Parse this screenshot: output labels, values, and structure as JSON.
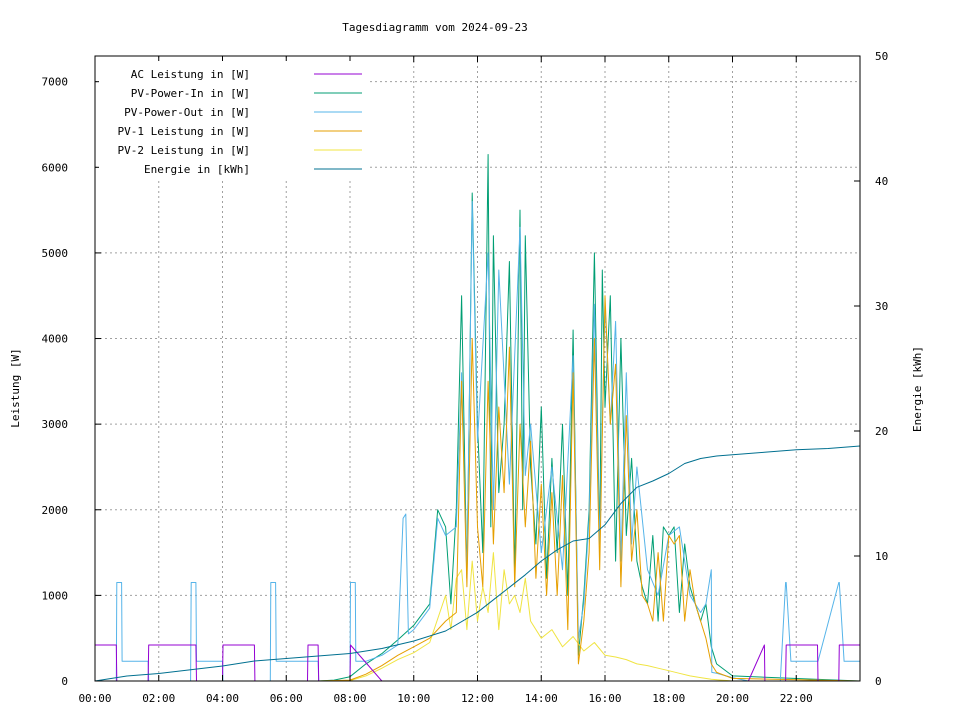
{
  "chart_data": {
    "type": "line",
    "title": "Tagesdiagramm vom 2024-09-23",
    "xlabel": "",
    "ylabel": "Leistung [W]",
    "y2label": "Energie [kWh]",
    "xlim": [
      "00:00",
      "24:00"
    ],
    "ylim": [
      0,
      7300
    ],
    "y2lim": [
      0,
      50
    ],
    "x_ticks": [
      "00:00",
      "02:00",
      "04:00",
      "06:00",
      "08:00",
      "10:00",
      "12:00",
      "14:00",
      "16:00",
      "18:00",
      "20:00",
      "22:00"
    ],
    "y_ticks": [
      0,
      1000,
      2000,
      3000,
      4000,
      5000,
      6000,
      7000
    ],
    "y2_ticks": [
      0,
      10,
      20,
      30,
      40,
      50
    ],
    "grid": true,
    "legend_position": "top-left",
    "series": [
      {
        "name": "AC Leistung in [W]",
        "axis": "left",
        "color": "#9400d3",
        "x": [
          "00:00",
          "00:40",
          "00:41",
          "01:40",
          "01:41",
          "03:10",
          "03:11",
          "04:00",
          "04:01",
          "05:00",
          "05:01",
          "06:40",
          "06:41",
          "07:00",
          "07:01",
          "08:00",
          "08:01",
          "09:00",
          "10:00",
          "11:00",
          "11:30",
          "12:00",
          "12:30",
          "13:00",
          "13:30",
          "14:00",
          "14:30",
          "15:00",
          "15:30",
          "16:00",
          "16:30",
          "17:00",
          "17:30",
          "18:00",
          "18:30",
          "19:00",
          "19:30",
          "20:00",
          "20:30",
          "21:00",
          "21:01",
          "21:40",
          "21:41",
          "22:40",
          "22:41",
          "23:20",
          "23:21",
          "24:00"
        ],
        "values": [
          420,
          420,
          0,
          0,
          420,
          420,
          0,
          0,
          420,
          420,
          0,
          0,
          420,
          420,
          0,
          0,
          420,
          0,
          0,
          0,
          0,
          0,
          0,
          0,
          0,
          0,
          0,
          0,
          0,
          0,
          0,
          0,
          0,
          0,
          0,
          0,
          0,
          0,
          0,
          420,
          0,
          0,
          420,
          420,
          0,
          0,
          420,
          420
        ]
      },
      {
        "name": "PV-Power-In in [W]",
        "axis": "left",
        "color": "#009e73",
        "x": [
          "00:00",
          "07:00",
          "07:30",
          "08:00",
          "08:30",
          "09:00",
          "09:30",
          "10:00",
          "10:30",
          "10:45",
          "11:00",
          "11:10",
          "11:20",
          "11:30",
          "11:40",
          "11:50",
          "12:00",
          "12:10",
          "12:20",
          "12:25",
          "12:30",
          "12:40",
          "12:50",
          "13:00",
          "13:10",
          "13:20",
          "13:25",
          "13:30",
          "13:40",
          "13:50",
          "14:00",
          "14:10",
          "14:20",
          "14:30",
          "14:40",
          "14:50",
          "15:00",
          "15:10",
          "15:20",
          "15:30",
          "15:40",
          "15:50",
          "15:55",
          "16:00",
          "16:10",
          "16:20",
          "16:30",
          "16:40",
          "16:50",
          "17:00",
          "17:10",
          "17:20",
          "17:30",
          "17:40",
          "17:50",
          "18:00",
          "18:10",
          "18:20",
          "18:30",
          "18:40",
          "18:50",
          "19:00",
          "19:10",
          "19:20",
          "19:30",
          "20:00",
          "24:00"
        ],
        "values": [
          0,
          0,
          10,
          50,
          200,
          320,
          480,
          650,
          900,
          2000,
          1800,
          900,
          2000,
          4500,
          1200,
          5700,
          3000,
          1500,
          6150,
          1800,
          5200,
          2200,
          3000,
          4900,
          1200,
          5500,
          2000,
          5200,
          2500,
          1600,
          3200,
          1200,
          2600,
          1500,
          3000,
          1000,
          4100,
          300,
          1000,
          2000,
          5000,
          1600,
          4800,
          3200,
          4500,
          1400,
          4000,
          1700,
          2600,
          1400,
          1100,
          900,
          1700,
          700,
          1800,
          1700,
          1800,
          800,
          1600,
          1100,
          900,
          700,
          900,
          400,
          200,
          60,
          0
        ]
      },
      {
        "name": "PV-Power-Out in [W]",
        "axis": "left",
        "color": "#56b4e9",
        "x": [
          "00:00",
          "00:40",
          "00:41",
          "00:50",
          "00:51",
          "01:40",
          "01:41",
          "03:00",
          "03:01",
          "03:10",
          "03:11",
          "04:00",
          "04:01",
          "05:30",
          "05:31",
          "05:40",
          "05:41",
          "07:00",
          "07:01",
          "08:00",
          "08:01",
          "08:10",
          "08:11",
          "08:30",
          "09:00",
          "09:30",
          "09:40",
          "09:45",
          "09:50",
          "10:00",
          "10:30",
          "10:45",
          "11:00",
          "11:20",
          "11:30",
          "11:40",
          "11:50",
          "12:00",
          "12:20",
          "12:30",
          "12:40",
          "13:00",
          "13:20",
          "13:30",
          "13:40",
          "14:00",
          "14:20",
          "14:40",
          "15:00",
          "15:10",
          "15:20",
          "15:30",
          "15:40",
          "15:50",
          "16:00",
          "16:10",
          "16:20",
          "16:30",
          "16:40",
          "16:50",
          "17:00",
          "17:20",
          "17:40",
          "18:00",
          "18:20",
          "18:40",
          "19:00",
          "19:10",
          "19:20",
          "19:21",
          "19:30",
          "20:00",
          "20:30",
          "21:30",
          "21:40",
          "21:41",
          "21:50",
          "21:51",
          "22:40",
          "22:41",
          "23:20",
          "23:21",
          "23:30",
          "23:31",
          "24:00"
        ],
        "values": [
          0,
          0,
          1150,
          1150,
          230,
          230,
          0,
          0,
          1150,
          1150,
          230,
          230,
          0,
          0,
          1150,
          1150,
          230,
          230,
          0,
          0,
          1150,
          1150,
          230,
          230,
          300,
          420,
          1900,
          1950,
          550,
          600,
          850,
          1900,
          1700,
          1800,
          3600,
          1200,
          5600,
          2800,
          5000,
          2000,
          4800,
          2300,
          5300,
          2400,
          3000,
          1500,
          2500,
          1300,
          3800,
          500,
          900,
          1900,
          4400,
          1600,
          4400,
          3000,
          4200,
          1400,
          3600,
          1600,
          2500,
          1300,
          1000,
          1700,
          1800,
          1000,
          800,
          900,
          1300,
          100,
          90,
          40,
          0,
          0,
          1150,
          1150,
          230,
          230,
          230,
          230,
          1150,
          1150,
          230,
          230,
          230
        ]
      },
      {
        "name": "PV-1 Leistung in [W]",
        "axis": "left",
        "color": "#e69f00",
        "x": [
          "00:00",
          "07:00",
          "08:00",
          "08:30",
          "09:00",
          "09:30",
          "10:00",
          "10:30",
          "11:00",
          "11:20",
          "11:30",
          "11:40",
          "11:50",
          "12:00",
          "12:10",
          "12:20",
          "12:30",
          "12:40",
          "12:50",
          "13:00",
          "13:10",
          "13:20",
          "13:30",
          "13:40",
          "13:50",
          "14:00",
          "14:10",
          "14:20",
          "14:30",
          "14:40",
          "14:50",
          "15:00",
          "15:10",
          "15:20",
          "15:30",
          "15:40",
          "15:50",
          "16:00",
          "16:10",
          "16:20",
          "16:30",
          "16:40",
          "16:50",
          "17:00",
          "17:10",
          "17:20",
          "17:30",
          "17:40",
          "17:50",
          "18:00",
          "18:10",
          "18:20",
          "18:30",
          "18:40",
          "18:50",
          "19:00",
          "19:10",
          "19:20",
          "19:30",
          "20:00",
          "24:00"
        ],
        "values": [
          0,
          0,
          10,
          80,
          180,
          300,
          400,
          500,
          700,
          800,
          3500,
          1100,
          4000,
          1800,
          1100,
          3500,
          1600,
          3200,
          2200,
          3900,
          1100,
          3000,
          1800,
          2800,
          1200,
          2300,
          1000,
          2200,
          1000,
          2400,
          600,
          3600,
          200,
          700,
          1500,
          4000,
          1300,
          4500,
          3000,
          3700,
          1100,
          3100,
          1400,
          2000,
          1000,
          900,
          700,
          1500,
          700,
          1700,
          1600,
          1700,
          700,
          1300,
          900,
          700,
          500,
          200,
          100,
          30,
          0
        ]
      },
      {
        "name": "PV-2 Leistung in [W]",
        "axis": "left",
        "color": "#f0e442",
        "x": [
          "00:00",
          "07:00",
          "08:00",
          "08:30",
          "09:00",
          "09:30",
          "10:00",
          "10:30",
          "11:00",
          "11:10",
          "11:20",
          "11:30",
          "11:40",
          "11:50",
          "12:00",
          "12:10",
          "12:20",
          "12:30",
          "12:40",
          "12:50",
          "13:00",
          "13:10",
          "13:20",
          "13:30",
          "13:40",
          "14:00",
          "14:20",
          "14:40",
          "15:00",
          "15:20",
          "15:40",
          "16:00",
          "16:20",
          "16:40",
          "17:00",
          "17:20",
          "17:40",
          "18:00",
          "18:20",
          "18:40",
          "19:00",
          "19:20",
          "19:40",
          "20:00",
          "24:00"
        ],
        "values": [
          0,
          0,
          5,
          60,
          150,
          250,
          330,
          450,
          1000,
          600,
          1200,
          1300,
          600,
          1400,
          700,
          1100,
          800,
          1500,
          600,
          1300,
          900,
          1000,
          800,
          1200,
          700,
          500,
          600,
          400,
          520,
          350,
          450,
          300,
          280,
          250,
          200,
          180,
          150,
          120,
          90,
          60,
          40,
          20,
          10,
          0,
          0
        ]
      },
      {
        "name": "Energie in [kWh]",
        "axis": "right",
        "color": "#007090",
        "x": [
          "00:00",
          "01:00",
          "02:00",
          "03:00",
          "04:00",
          "05:00",
          "06:00",
          "07:00",
          "08:00",
          "09:00",
          "10:00",
          "11:00",
          "12:00",
          "12:30",
          "13:00",
          "13:30",
          "14:00",
          "14:30",
          "15:00",
          "15:30",
          "16:00",
          "16:30",
          "17:00",
          "17:30",
          "18:00",
          "18:30",
          "19:00",
          "19:30",
          "20:00",
          "21:00",
          "22:00",
          "23:00",
          "24:00"
        ],
        "values": [
          0,
          0.4,
          0.6,
          0.9,
          1.2,
          1.6,
          1.8,
          2.0,
          2.2,
          2.6,
          3.2,
          4.0,
          5.5,
          6.5,
          7.5,
          8.5,
          9.6,
          10.5,
          11.2,
          11.4,
          12.5,
          14.2,
          15.5,
          16.0,
          16.6,
          17.4,
          17.8,
          18.0,
          18.1,
          18.3,
          18.5,
          18.6,
          18.8
        ]
      }
    ]
  }
}
